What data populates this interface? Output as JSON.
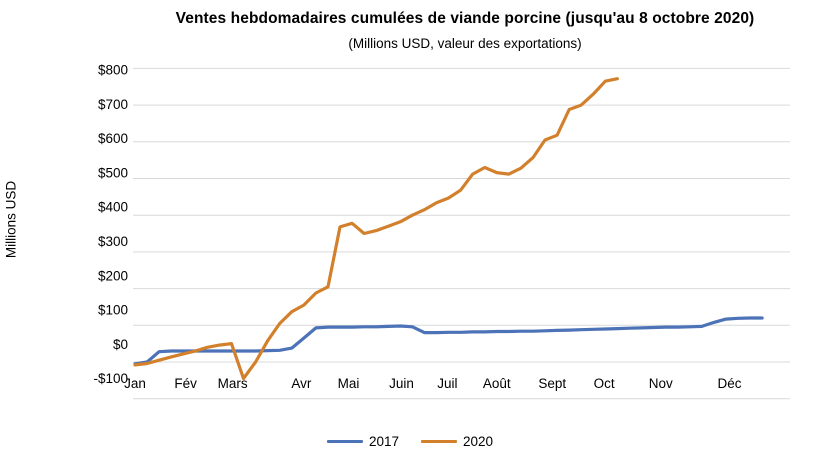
{
  "chart_data": {
    "type": "line",
    "title": "Ventes hebdomadaires cumulées de viande porcine (jusqu'au 8 octobre 2020)",
    "subtitle": "(Millions USD, valeur des exportations)",
    "ylabel": "Millions USD",
    "ylim": [
      -100,
      800
    ],
    "grid": true,
    "legend_position": "bottom",
    "grid_color": "#D9D9D9",
    "text_color": "#000000",
    "x_unit": "week",
    "y_axis": {
      "tick_labels": [
        "$800",
        "$700",
        "$600",
        "$500",
        "$400",
        "$300",
        "$200",
        "$100",
        "$0",
        "-$100"
      ],
      "tick_values": [
        800,
        700,
        600,
        500,
        400,
        300,
        200,
        100,
        0,
        -100
      ]
    },
    "x_axis": {
      "months": [
        {
          "label": "Jan",
          "week": 1.0
        },
        {
          "label": "Fév",
          "week": 5.2
        },
        {
          "label": "Mars",
          "week": 9.1
        },
        {
          "label": "Avr",
          "week": 14.8
        },
        {
          "label": "Mai",
          "week": 18.7
        },
        {
          "label": "Juin",
          "week": 23.1
        },
        {
          "label": "Juil",
          "week": 26.9
        },
        {
          "label": "Août",
          "week": 31.0
        },
        {
          "label": "Sept",
          "week": 35.6
        },
        {
          "label": "Oct",
          "week": 39.9
        },
        {
          "label": "Nov",
          "week": 44.6
        },
        {
          "label": "Déc",
          "week": 50.3
        }
      ]
    },
    "series": [
      {
        "name": "2017",
        "color": "#4C72B8",
        "start_week": 1,
        "values": [
          -5,
          0,
          28,
          30,
          30,
          30,
          30,
          30,
          30,
          30,
          30,
          31,
          32,
          38,
          65,
          93,
          95,
          95,
          95,
          96,
          96,
          97,
          98,
          96,
          80,
          80,
          81,
          81,
          82,
          82,
          83,
          83,
          84,
          84,
          85,
          86,
          87,
          88,
          89,
          90,
          91,
          92,
          93,
          94,
          95,
          95,
          96,
          97,
          108,
          117,
          119,
          120,
          120
        ]
      },
      {
        "name": "2020",
        "color": "#D3802C",
        "start_week": 1,
        "values": [
          -8,
          -4,
          5,
          14,
          22,
          30,
          40,
          46,
          50,
          -45,
          0,
          58,
          105,
          137,
          155,
          188,
          205,
          368,
          378,
          350,
          358,
          370,
          382,
          400,
          415,
          434,
          447,
          468,
          512,
          530,
          516,
          512,
          528,
          557,
          605,
          618,
          688,
          700,
          730,
          765,
          772
        ]
      }
    ]
  }
}
